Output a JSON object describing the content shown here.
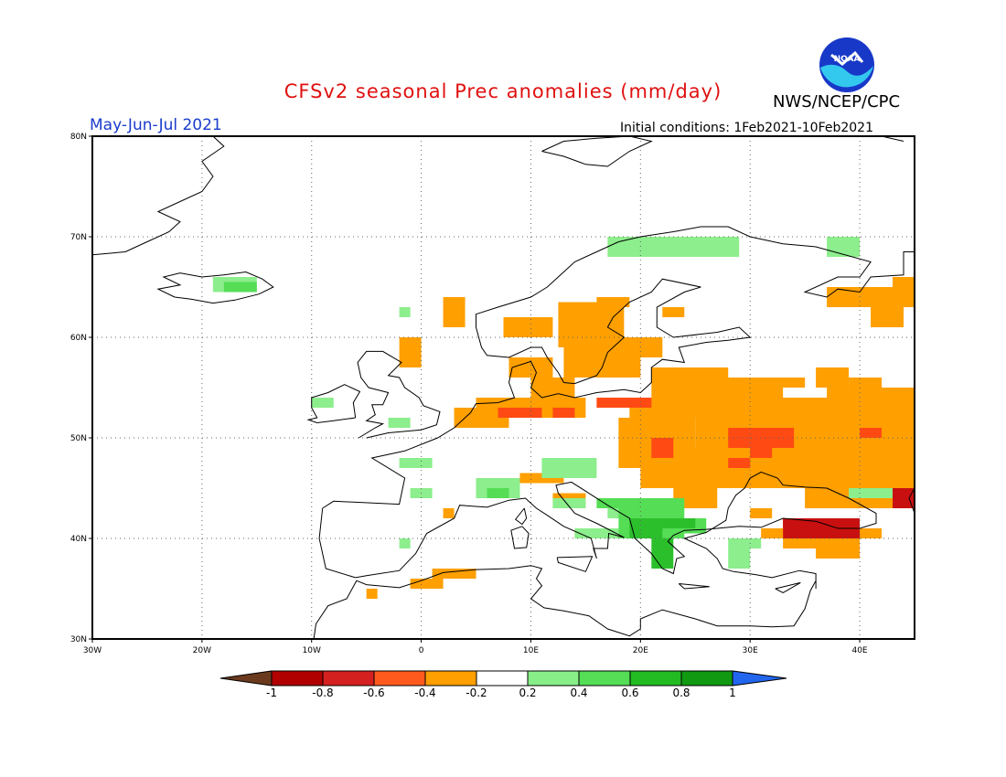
{
  "header": {
    "title": "CFSv2 seasonal Prec anomalies (mm/day)",
    "period": "May-Jun-Jul 2021",
    "initial_conditions": "Initial conditions: 1Feb2021-10Feb2021",
    "agency": "NWS/NCEP/CPC",
    "logo_text": "NOAA"
  },
  "map": {
    "lon_range": [
      -30,
      45
    ],
    "lat_range": [
      30,
      80
    ],
    "lon_ticks": [
      "30W",
      "20W",
      "10W",
      "0",
      "10E",
      "20E",
      "30E",
      "40E"
    ],
    "lat_ticks": [
      "30N",
      "40N",
      "50N",
      "60N",
      "70N",
      "80N"
    ],
    "grid": "dotted"
  },
  "legend": {
    "labels": [
      "-1",
      "-0.8",
      "-0.6",
      "-0.4",
      "-0.2",
      "0.2",
      "0.4",
      "0.6",
      "0.8",
      "1"
    ],
    "colors": [
      "#6b3a1e",
      "#b00000",
      "#d52020",
      "#ff5a1e",
      "#ff9f00",
      "#ffffff",
      "#88ee88",
      "#55dd55",
      "#22bb22",
      "#119911",
      "#2266ee"
    ]
  },
  "colors": {
    "title": "#e01010",
    "period": "#1a3ccc",
    "orange": "#ff9f00",
    "red_orange": "#ff4a14",
    "red": "#c81010",
    "light_green": "#8cee8c",
    "green": "#55dd55",
    "mid_green": "#2cbf2c"
  }
}
